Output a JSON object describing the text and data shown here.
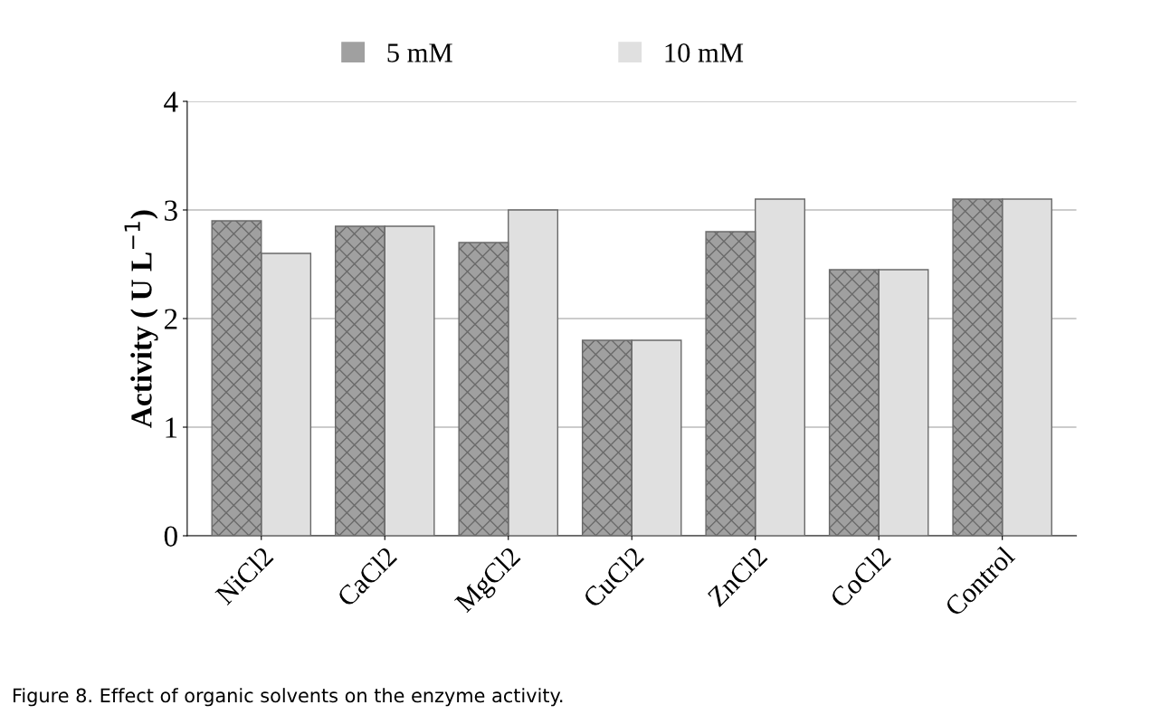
{
  "chart_data": {
    "type": "bar",
    "ylabel": "Activity ( U L$^{−1}$)",
    "categories": [
      "NiCl2",
      "CaCl2",
      "MgCl2",
      "CuCl2",
      "ZnCl2",
      "CoCl2",
      "Control"
    ],
    "series": [
      {
        "name": "5 mM",
        "color": "#a0a0a0",
        "values": [
          2.9,
          2.85,
          2.7,
          1.8,
          2.8,
          2.45,
          3.1
        ]
      },
      {
        "name": "10 mM",
        "color": "#e0e0e0",
        "values": [
          2.6,
          2.85,
          3.0,
          1.8,
          3.1,
          2.45,
          3.1
        ]
      }
    ],
    "ylim": [
      0,
      4
    ],
    "yticks": [
      0,
      1,
      2,
      3,
      4
    ],
    "grid": "y",
    "legend": "top",
    "annotations": [
      "Figure 8. Effect of organic solvents on the enzyme activity."
    ]
  }
}
